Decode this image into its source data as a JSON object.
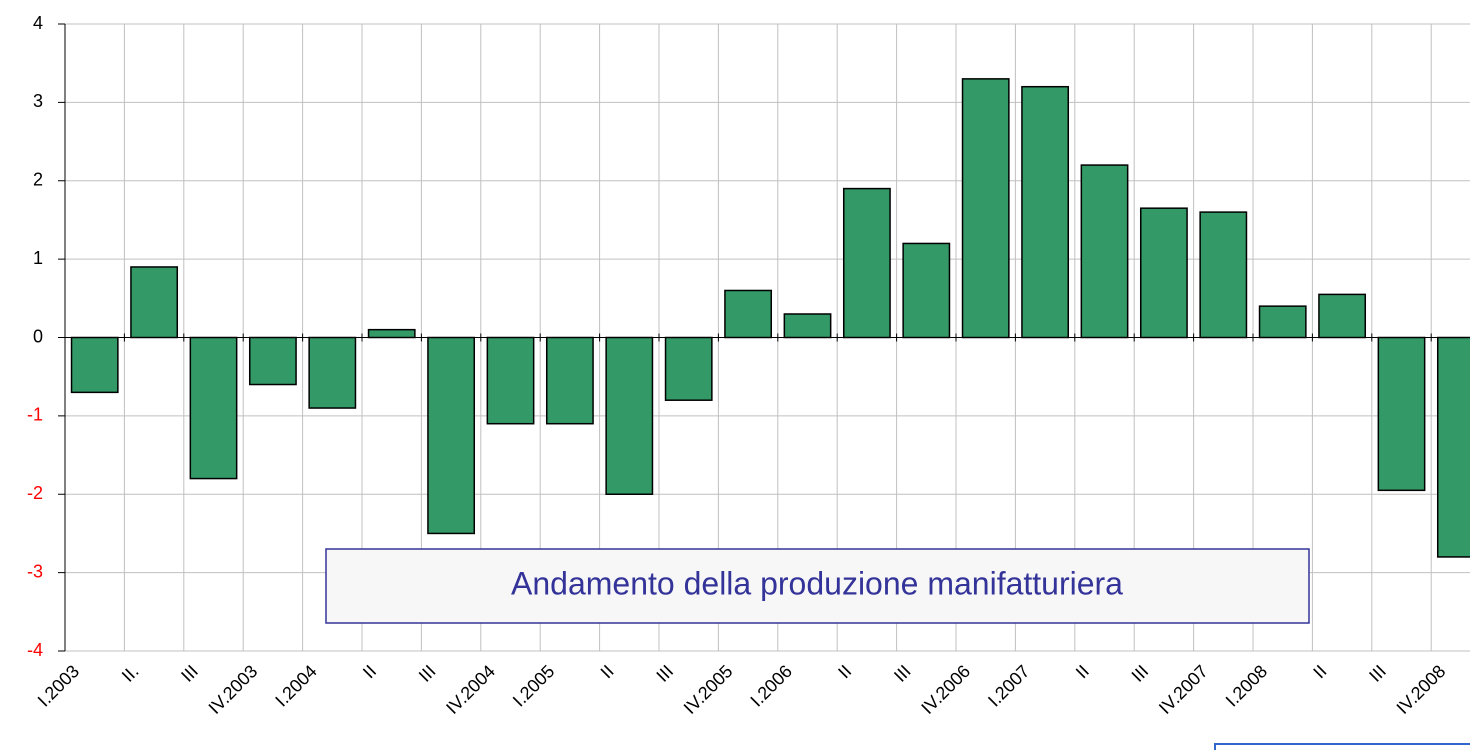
{
  "chart_data": {
    "type": "bar",
    "title": "Andamento della produzione manifatturiera",
    "categories": [
      "I.2003",
      "II.",
      "III",
      "IV.2003",
      "I.2004",
      "II",
      "III",
      "IV.2004",
      "I.2005",
      "II",
      "III",
      "IV.2005",
      "I.2006",
      "II",
      "III",
      "IV.2006",
      "I.2007",
      "II",
      "III",
      "IV.2007",
      "I.2008",
      "II",
      "III",
      "IV.2008"
    ],
    "values": [
      -0.7,
      0.9,
      -1.8,
      -0.6,
      -0.9,
      0.1,
      -2.5,
      -1.1,
      -1.1,
      -2.0,
      -0.8,
      0.6,
      0.3,
      1.9,
      1.2,
      3.3,
      3.2,
      2.2,
      1.65,
      1.6,
      0.4,
      0.55,
      -1.95,
      -2.8
    ],
    "color": "#339966",
    "ylim": [
      -4,
      4
    ],
    "yticks": [
      -4,
      -3,
      -2,
      -1,
      0,
      1,
      2,
      3,
      4
    ],
    "grid": true,
    "tick_color": "#000000",
    "negative_tick_color": "#ff0000"
  }
}
